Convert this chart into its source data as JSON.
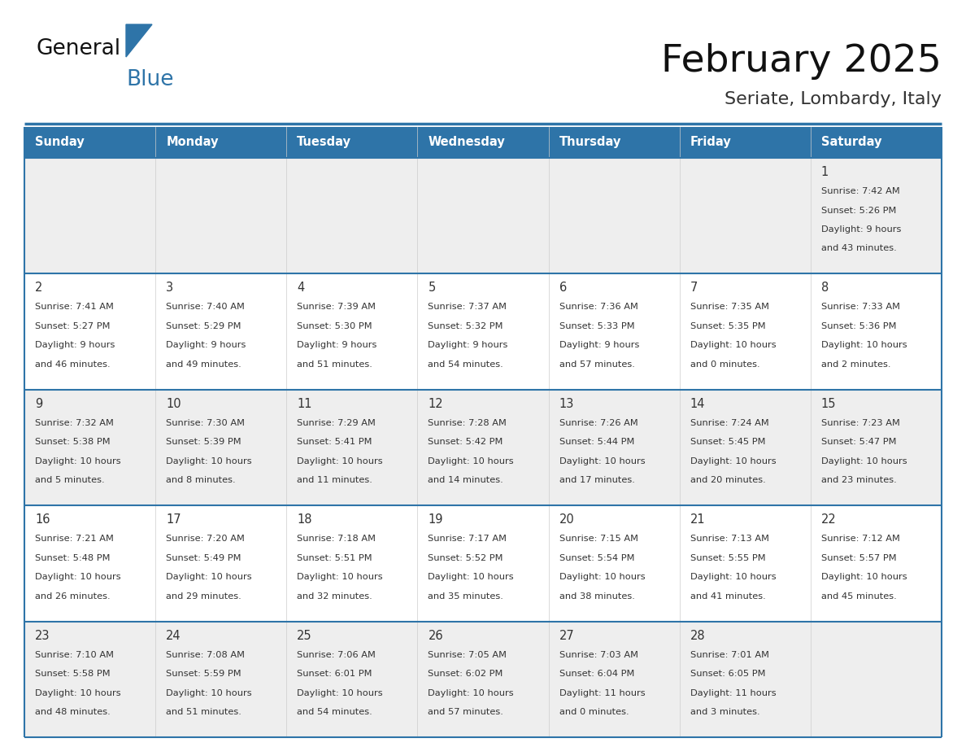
{
  "title": "February 2025",
  "subtitle": "Seriate, Lombardy, Italy",
  "header_bg": "#2E74A8",
  "header_text": "#FFFFFF",
  "cell_bg_week1": "#F0F0F0",
  "cell_bg_normal": "#FFFFFF",
  "cell_bg_last": "#F0F0F0",
  "separator_color": "#2E74A8",
  "border_color": "#2E74A8",
  "text_color": "#333333",
  "day_headers": [
    "Sunday",
    "Monday",
    "Tuesday",
    "Wednesday",
    "Thursday",
    "Friday",
    "Saturday"
  ],
  "weeks": [
    [
      {
        "day": "",
        "info": ""
      },
      {
        "day": "",
        "info": ""
      },
      {
        "day": "",
        "info": ""
      },
      {
        "day": "",
        "info": ""
      },
      {
        "day": "",
        "info": ""
      },
      {
        "day": "",
        "info": ""
      },
      {
        "day": "1",
        "info": "Sunrise: 7:42 AM\nSunset: 5:26 PM\nDaylight: 9 hours\nand 43 minutes."
      }
    ],
    [
      {
        "day": "2",
        "info": "Sunrise: 7:41 AM\nSunset: 5:27 PM\nDaylight: 9 hours\nand 46 minutes."
      },
      {
        "day": "3",
        "info": "Sunrise: 7:40 AM\nSunset: 5:29 PM\nDaylight: 9 hours\nand 49 minutes."
      },
      {
        "day": "4",
        "info": "Sunrise: 7:39 AM\nSunset: 5:30 PM\nDaylight: 9 hours\nand 51 minutes."
      },
      {
        "day": "5",
        "info": "Sunrise: 7:37 AM\nSunset: 5:32 PM\nDaylight: 9 hours\nand 54 minutes."
      },
      {
        "day": "6",
        "info": "Sunrise: 7:36 AM\nSunset: 5:33 PM\nDaylight: 9 hours\nand 57 minutes."
      },
      {
        "day": "7",
        "info": "Sunrise: 7:35 AM\nSunset: 5:35 PM\nDaylight: 10 hours\nand 0 minutes."
      },
      {
        "day": "8",
        "info": "Sunrise: 7:33 AM\nSunset: 5:36 PM\nDaylight: 10 hours\nand 2 minutes."
      }
    ],
    [
      {
        "day": "9",
        "info": "Sunrise: 7:32 AM\nSunset: 5:38 PM\nDaylight: 10 hours\nand 5 minutes."
      },
      {
        "day": "10",
        "info": "Sunrise: 7:30 AM\nSunset: 5:39 PM\nDaylight: 10 hours\nand 8 minutes."
      },
      {
        "day": "11",
        "info": "Sunrise: 7:29 AM\nSunset: 5:41 PM\nDaylight: 10 hours\nand 11 minutes."
      },
      {
        "day": "12",
        "info": "Sunrise: 7:28 AM\nSunset: 5:42 PM\nDaylight: 10 hours\nand 14 minutes."
      },
      {
        "day": "13",
        "info": "Sunrise: 7:26 AM\nSunset: 5:44 PM\nDaylight: 10 hours\nand 17 minutes."
      },
      {
        "day": "14",
        "info": "Sunrise: 7:24 AM\nSunset: 5:45 PM\nDaylight: 10 hours\nand 20 minutes."
      },
      {
        "day": "15",
        "info": "Sunrise: 7:23 AM\nSunset: 5:47 PM\nDaylight: 10 hours\nand 23 minutes."
      }
    ],
    [
      {
        "day": "16",
        "info": "Sunrise: 7:21 AM\nSunset: 5:48 PM\nDaylight: 10 hours\nand 26 minutes."
      },
      {
        "day": "17",
        "info": "Sunrise: 7:20 AM\nSunset: 5:49 PM\nDaylight: 10 hours\nand 29 minutes."
      },
      {
        "day": "18",
        "info": "Sunrise: 7:18 AM\nSunset: 5:51 PM\nDaylight: 10 hours\nand 32 minutes."
      },
      {
        "day": "19",
        "info": "Sunrise: 7:17 AM\nSunset: 5:52 PM\nDaylight: 10 hours\nand 35 minutes."
      },
      {
        "day": "20",
        "info": "Sunrise: 7:15 AM\nSunset: 5:54 PM\nDaylight: 10 hours\nand 38 minutes."
      },
      {
        "day": "21",
        "info": "Sunrise: 7:13 AM\nSunset: 5:55 PM\nDaylight: 10 hours\nand 41 minutes."
      },
      {
        "day": "22",
        "info": "Sunrise: 7:12 AM\nSunset: 5:57 PM\nDaylight: 10 hours\nand 45 minutes."
      }
    ],
    [
      {
        "day": "23",
        "info": "Sunrise: 7:10 AM\nSunset: 5:58 PM\nDaylight: 10 hours\nand 48 minutes."
      },
      {
        "day": "24",
        "info": "Sunrise: 7:08 AM\nSunset: 5:59 PM\nDaylight: 10 hours\nand 51 minutes."
      },
      {
        "day": "25",
        "info": "Sunrise: 7:06 AM\nSunset: 6:01 PM\nDaylight: 10 hours\nand 54 minutes."
      },
      {
        "day": "26",
        "info": "Sunrise: 7:05 AM\nSunset: 6:02 PM\nDaylight: 10 hours\nand 57 minutes."
      },
      {
        "day": "27",
        "info": "Sunrise: 7:03 AM\nSunset: 6:04 PM\nDaylight: 11 hours\nand 0 minutes."
      },
      {
        "day": "28",
        "info": "Sunrise: 7:01 AM\nSunset: 6:05 PM\nDaylight: 11 hours\nand 3 minutes."
      },
      {
        "day": "",
        "info": ""
      }
    ]
  ],
  "row_bg_colors": [
    "#EEEEEE",
    "#FFFFFF",
    "#EEEEEE",
    "#FFFFFF",
    "#EEEEEE"
  ]
}
